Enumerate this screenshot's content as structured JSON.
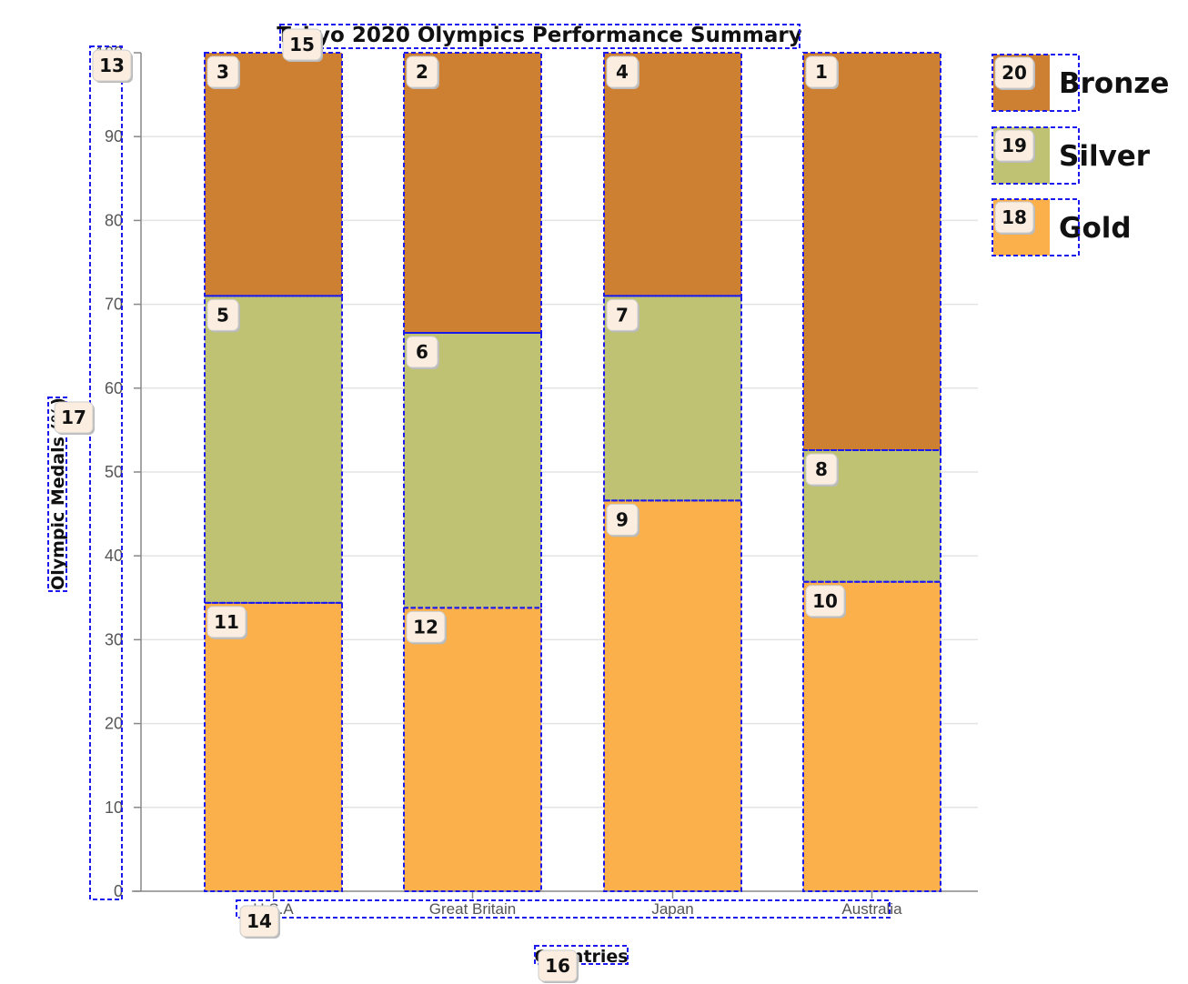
{
  "chart_data": {
    "type": "bar",
    "stacked": true,
    "percent": true,
    "title": "Tokyo 2020 Olympics Performance Summary",
    "xlabel": "Countries",
    "ylabel": "Olympic Medals (%)",
    "categories": [
      "U.S.A",
      "Great Britain",
      "Japan",
      "Australia"
    ],
    "series": [
      {
        "name": "Gold",
        "color": "#fbb04b",
        "values": [
          34.4,
          33.8,
          46.6,
          36.9
        ]
      },
      {
        "name": "Silver",
        "color": "#bfc272",
        "values": [
          36.6,
          32.8,
          24.4,
          15.7
        ]
      },
      {
        "name": "Bronze",
        "color": "#cd7f32",
        "values": [
          29.0,
          33.4,
          29.0,
          47.4
        ]
      }
    ],
    "ylim": [
      0,
      100
    ],
    "yticks": [
      "0",
      "10",
      "20",
      "30",
      "40",
      "50",
      "60",
      "70",
      "80",
      "90",
      "100"
    ],
    "grid": true,
    "legend_position": "top-right",
    "legend_order": [
      "Bronze",
      "Silver",
      "Gold"
    ]
  },
  "badges": {
    "bars": [
      {
        "category": 3,
        "series": 2,
        "number": "1"
      },
      {
        "category": 1,
        "series": 2,
        "number": "2"
      },
      {
        "category": 0,
        "series": 2,
        "number": "3"
      },
      {
        "category": 2,
        "series": 2,
        "number": "4"
      },
      {
        "category": 0,
        "series": 1,
        "number": "5"
      },
      {
        "category": 1,
        "series": 1,
        "number": "6"
      },
      {
        "category": 2,
        "series": 1,
        "number": "7"
      },
      {
        "category": 3,
        "series": 1,
        "number": "8"
      },
      {
        "category": 2,
        "series": 0,
        "number": "9"
      },
      {
        "category": 3,
        "series": 0,
        "number": "10"
      },
      {
        "category": 0,
        "series": 0,
        "number": "11"
      },
      {
        "category": 1,
        "series": 0,
        "number": "12"
      }
    ],
    "y_axis": "13",
    "x_axis": "14",
    "title": "15",
    "x_title": "16",
    "y_title": "17",
    "legend": {
      "Gold": "18",
      "Silver": "19",
      "Bronze": "20"
    }
  }
}
